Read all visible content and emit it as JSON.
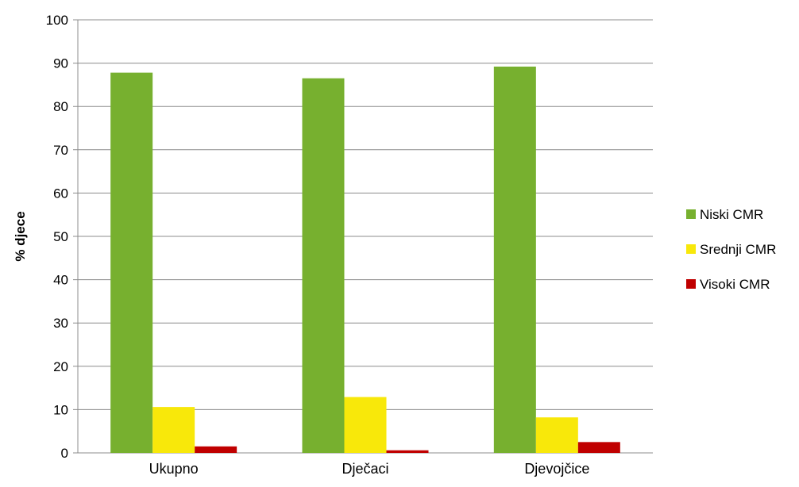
{
  "chart_data": {
    "type": "bar",
    "title": "",
    "xlabel": "",
    "ylabel": "% djece",
    "ylim": [
      0,
      100
    ],
    "yticks": [
      0,
      10,
      20,
      30,
      40,
      50,
      60,
      70,
      80,
      90,
      100
    ],
    "grid": true,
    "legend_position": "right",
    "categories": [
      "Ukupno",
      "Dječaci",
      "Djevojčice"
    ],
    "series": [
      {
        "name": "Niski CMR",
        "color": "#77b02f",
        "values": [
          87.8,
          86.5,
          89.2
        ]
      },
      {
        "name": "Srednji CMR",
        "color": "#f8e80a",
        "values": [
          10.6,
          12.9,
          8.2
        ]
      },
      {
        "name": "Visoki CMR",
        "color": "#c00000",
        "values": [
          1.5,
          0.6,
          2.5
        ]
      }
    ]
  }
}
